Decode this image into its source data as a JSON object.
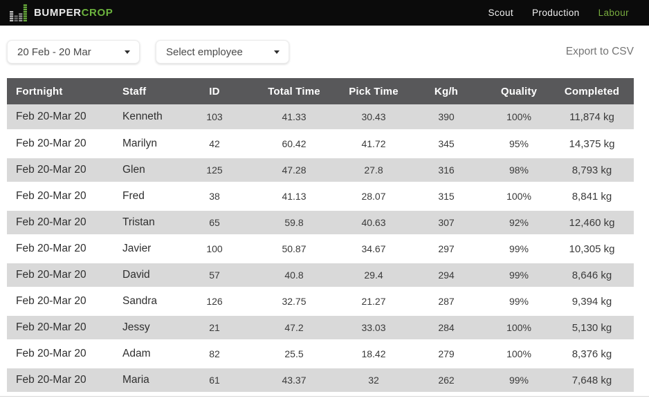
{
  "navbar": {
    "logo": {
      "text_primary": "BUMPER",
      "text_accent": "CROP"
    },
    "items": [
      {
        "label": "Scout",
        "active": false
      },
      {
        "label": "Production",
        "active": false
      },
      {
        "label": "Labour",
        "active": true
      }
    ]
  },
  "toolbar": {
    "date_range_value": "20 Feb - 20 Mar",
    "employee_select_value": "Select employee",
    "export_label": "Export to CSV"
  },
  "table": {
    "columns": [
      "Fortnight",
      "Staff",
      "ID",
      "Total Time",
      "Pick Time",
      "Kg/h",
      "Quality",
      "Completed"
    ],
    "rows": [
      [
        "Feb 20-Mar 20",
        "Kenneth",
        "103",
        "41.33",
        "30.43",
        "390",
        "100%",
        "11,874 kg"
      ],
      [
        "Feb 20-Mar 20",
        "Marilyn",
        "42",
        "60.42",
        "41.72",
        "345",
        "95%",
        "14,375 kg"
      ],
      [
        "Feb 20-Mar 20",
        "Glen",
        "125",
        "47.28",
        "27.8",
        "316",
        "98%",
        "8,793 kg"
      ],
      [
        "Feb 20-Mar 20",
        "Fred",
        "38",
        "41.13",
        "28.07",
        "315",
        "100%",
        "8,841 kg"
      ],
      [
        "Feb 20-Mar 20",
        "Tristan",
        "65",
        "59.8",
        "40.63",
        "307",
        "92%",
        "12,460 kg"
      ],
      [
        "Feb 20-Mar 20",
        "Javier",
        "100",
        "50.87",
        "34.67",
        "297",
        "99%",
        "10,305 kg"
      ],
      [
        "Feb 20-Mar 20",
        "David",
        "57",
        "40.8",
        "29.4",
        "294",
        "99%",
        "8,646 kg"
      ],
      [
        "Feb 20-Mar 20",
        "Sandra",
        "126",
        "32.75",
        "21.27",
        "287",
        "99%",
        "9,394 kg"
      ],
      [
        "Feb 20-Mar 20",
        "Jessy",
        "21",
        "47.2",
        "33.03",
        "284",
        "100%",
        "5,130 kg"
      ],
      [
        "Feb 20-Mar 20",
        "Adam",
        "82",
        "25.5",
        "18.42",
        "279",
        "100%",
        "8,376 kg"
      ],
      [
        "Feb 20-Mar 20",
        "Maria",
        "61",
        "43.37",
        "32",
        "262",
        "99%",
        "7,648 kg"
      ]
    ]
  },
  "colors": {
    "accent_green": "#6cb33e",
    "nav_active_green": "#79ad3f",
    "table_header_bg": "#58585a",
    "zebra_row_bg": "#d9d9d9"
  }
}
